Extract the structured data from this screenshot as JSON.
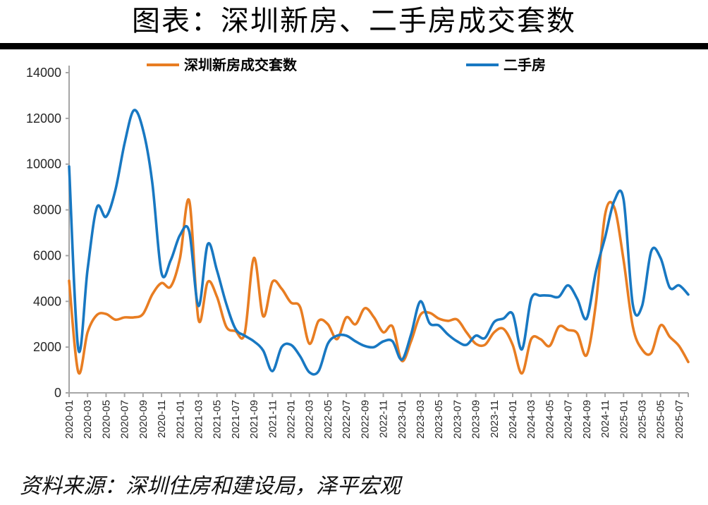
{
  "title": "图表：深圳新房、二手房成交套数",
  "source": "资料来源：深圳住房和建设局，泽平宏观",
  "colors": {
    "new_homes": "#E87D22",
    "secondhand": "#1878C2",
    "axis": "#A6A6A6",
    "tick_label": "#262626",
    "title_rule": "#000000"
  },
  "legend": {
    "new_homes_label": "深圳新房成交套数",
    "secondhand_label": "二手房"
  },
  "chart_data": {
    "type": "line",
    "smooth": true,
    "grid": false,
    "legend_position": "top",
    "ylim": [
      0,
      14000
    ],
    "ytick_step": 2000,
    "xtick_every": 2,
    "x": [
      "2020-01",
      "2020-02",
      "2020-03",
      "2020-04",
      "2020-05",
      "2020-06",
      "2020-07",
      "2020-08",
      "2020-09",
      "2020-10",
      "2020-11",
      "2020-12",
      "2021-01",
      "2021-02",
      "2021-03",
      "2021-04",
      "2021-05",
      "2021-06",
      "2021-07",
      "2021-08",
      "2021-09",
      "2021-10",
      "2021-11",
      "2021-12",
      "2022-01",
      "2022-02",
      "2022-03",
      "2022-04",
      "2022-05",
      "2022-06",
      "2022-07",
      "2022-08",
      "2022-09",
      "2022-10",
      "2022-11",
      "2022-12",
      "2023-01",
      "2023-02",
      "2023-03",
      "2023-04",
      "2023-05",
      "2023-06",
      "2023-07",
      "2023-08",
      "2023-09",
      "2023-10",
      "2023-11",
      "2023-12",
      "2024-01",
      "2024-02",
      "2024-03",
      "2024-04",
      "2024-05",
      "2024-06",
      "2024-07",
      "2024-08",
      "2024-09",
      "2024-10",
      "2024-11",
      "2024-12",
      "2025-01",
      "2025-02",
      "2025-03",
      "2025-04",
      "2025-05",
      "2025-06",
      "2025-07",
      "2025-08"
    ],
    "series": [
      {
        "name": "深圳新房成交套数",
        "key": "new_homes",
        "color": "#E87D22",
        "values": [
          4900,
          900,
          2650,
          3400,
          3450,
          3200,
          3300,
          3300,
          3450,
          4300,
          4800,
          4650,
          5900,
          8400,
          3200,
          4850,
          4200,
          2900,
          2700,
          2600,
          5900,
          3350,
          4850,
          4550,
          3950,
          3750,
          2150,
          3150,
          3000,
          2350,
          3300,
          3000,
          3700,
          3300,
          2650,
          2900,
          1400,
          2250,
          3400,
          3500,
          3250,
          3150,
          3200,
          2650,
          2150,
          2100,
          2650,
          2800,
          2100,
          850,
          2350,
          2350,
          2050,
          2900,
          2750,
          2600,
          1650,
          3900,
          7800,
          8100,
          5800,
          2900,
          1900,
          1750,
          2950,
          2450,
          2050,
          1350
        ]
      },
      {
        "name": "二手房",
        "key": "secondhand",
        "color": "#1878C2",
        "values": [
          9900,
          1900,
          5400,
          8100,
          7700,
          8850,
          10900,
          12350,
          11500,
          9200,
          5250,
          5800,
          6900,
          7050,
          3800,
          6500,
          5350,
          3900,
          2800,
          2500,
          2250,
          1850,
          950,
          2000,
          2100,
          1600,
          900,
          950,
          2150,
          2500,
          2500,
          2250,
          2050,
          2000,
          2250,
          2250,
          1450,
          2550,
          4000,
          3050,
          2950,
          2550,
          2250,
          2100,
          2500,
          2400,
          3100,
          3250,
          3450,
          1900,
          4100,
          4250,
          4250,
          4200,
          4700,
          4100,
          3250,
          5300,
          6800,
          8400,
          8450,
          3850,
          3800,
          6200,
          5900,
          4600,
          4700,
          4300
        ]
      }
    ]
  }
}
